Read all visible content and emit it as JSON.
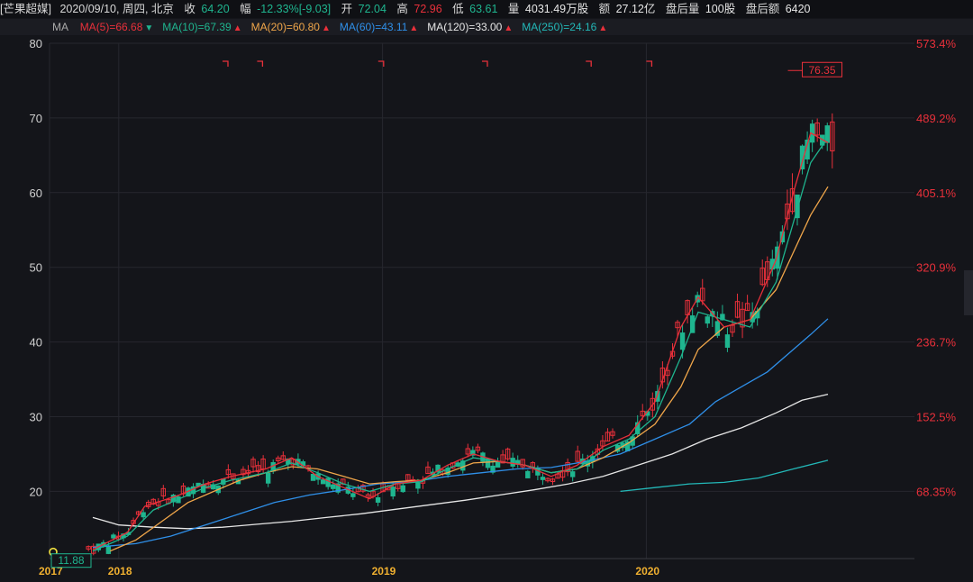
{
  "header": {
    "name": "[芒果超媒]",
    "date": "2020/09/10, 周四, 北京",
    "close_label": "收",
    "close_value": "64.20",
    "change_label": "幅",
    "change_value": "-12.33%",
    "change_abs": "[-9.03]",
    "open_label": "开",
    "open_value": "72.04",
    "high_label": "高",
    "high_value": "72.96",
    "low_label": "低",
    "low_value": "63.61",
    "volume_label": "量",
    "volume_value": "4031.49万股",
    "amount_label": "额",
    "amount_value": "27.12亿",
    "after_vol_label": "盘后量",
    "after_vol_value": "100股",
    "after_amt_label": "盘后额",
    "after_amt_value": "6420"
  },
  "ma_legend": {
    "title": "MA",
    "items": [
      {
        "text": "MA(5)=66.68",
        "color": "#e8303a",
        "arrow": "down"
      },
      {
        "text": "MA(10)=67.39",
        "color": "#1fb58f",
        "arrow": "up"
      },
      {
        "text": "MA(20)=60.80",
        "color": "#f0a64a",
        "arrow": "up"
      },
      {
        "text": "MA(60)=43.11",
        "color": "#2f8fe8",
        "arrow": "up"
      },
      {
        "text": "MA(120)=33.00",
        "color": "#e6e6e6",
        "arrow": "up"
      },
      {
        "text": "MA(250)=24.16",
        "color": "#23b8b8",
        "arrow": "up"
      }
    ]
  },
  "chart_data": {
    "type": "candlestick",
    "y_left_ticks": [
      "80",
      "70",
      "60",
      "50",
      "40",
      "30",
      "20"
    ],
    "y_right_ticks": [
      "573.4%",
      "489.2%",
      "405.1%",
      "320.9%",
      "236.7%",
      "152.5%",
      "68.35%"
    ],
    "x_ticks": [
      "2017",
      "2018",
      "2019",
      "2020"
    ],
    "ylim": [
      11,
      80
    ],
    "max_label": "76.35",
    "min_label": "11.88",
    "colors": {
      "up": "#e8303a",
      "down": "#1fb58f",
      "grid": "#26272e",
      "right_axis": "#e8303a"
    },
    "ma5_points": [
      [
        0.05,
        12.2
      ],
      [
        0.09,
        14.5
      ],
      [
        0.11,
        18
      ],
      [
        0.15,
        19.5
      ],
      [
        0.18,
        21
      ],
      [
        0.21,
        22
      ],
      [
        0.25,
        23
      ],
      [
        0.28,
        24.5
      ],
      [
        0.31,
        22
      ],
      [
        0.34,
        20.5
      ],
      [
        0.37,
        19
      ],
      [
        0.4,
        21
      ],
      [
        0.43,
        21.5
      ],
      [
        0.46,
        23.5
      ],
      [
        0.49,
        25
      ],
      [
        0.52,
        24
      ],
      [
        0.55,
        23.5
      ],
      [
        0.58,
        22
      ],
      [
        0.61,
        23.5
      ],
      [
        0.64,
        26
      ],
      [
        0.67,
        27.5
      ],
      [
        0.7,
        32
      ],
      [
        0.73,
        42
      ],
      [
        0.75,
        46
      ],
      [
        0.78,
        42
      ],
      [
        0.81,
        43
      ],
      [
        0.84,
        51
      ],
      [
        0.86,
        60
      ],
      [
        0.88,
        68
      ],
      [
        0.9,
        66.68
      ]
    ],
    "ma10_points": [
      [
        0.05,
        12.0
      ],
      [
        0.09,
        14
      ],
      [
        0.12,
        17.5
      ],
      [
        0.15,
        19
      ],
      [
        0.18,
        20.5
      ],
      [
        0.21,
        21.5
      ],
      [
        0.25,
        22.5
      ],
      [
        0.28,
        23.8
      ],
      [
        0.31,
        22.5
      ],
      [
        0.34,
        21
      ],
      [
        0.37,
        20
      ],
      [
        0.4,
        21
      ],
      [
        0.43,
        21.3
      ],
      [
        0.46,
        23
      ],
      [
        0.49,
        24.5
      ],
      [
        0.52,
        24
      ],
      [
        0.55,
        23.5
      ],
      [
        0.58,
        22.5
      ],
      [
        0.61,
        23
      ],
      [
        0.64,
        25.5
      ],
      [
        0.67,
        27
      ],
      [
        0.7,
        30
      ],
      [
        0.73,
        38
      ],
      [
        0.75,
        44
      ],
      [
        0.78,
        43
      ],
      [
        0.81,
        42
      ],
      [
        0.84,
        48
      ],
      [
        0.86,
        56
      ],
      [
        0.88,
        64
      ],
      [
        0.9,
        67.39
      ]
    ],
    "ma20_points": [
      [
        0.07,
        12
      ],
      [
        0.1,
        13.5
      ],
      [
        0.13,
        16
      ],
      [
        0.16,
        18.5
      ],
      [
        0.19,
        20
      ],
      [
        0.22,
        21.5
      ],
      [
        0.25,
        22.5
      ],
      [
        0.28,
        23.3
      ],
      [
        0.31,
        23
      ],
      [
        0.34,
        22
      ],
      [
        0.37,
        21
      ],
      [
        0.4,
        21.3
      ],
      [
        0.43,
        21.5
      ],
      [
        0.46,
        22.5
      ],
      [
        0.49,
        23.8
      ],
      [
        0.52,
        24
      ],
      [
        0.55,
        23.5
      ],
      [
        0.58,
        22.5
      ],
      [
        0.61,
        23
      ],
      [
        0.64,
        24.5
      ],
      [
        0.67,
        26.5
      ],
      [
        0.7,
        29
      ],
      [
        0.73,
        34
      ],
      [
        0.75,
        39
      ],
      [
        0.78,
        42
      ],
      [
        0.81,
        43
      ],
      [
        0.84,
        47
      ],
      [
        0.86,
        52
      ],
      [
        0.88,
        57
      ],
      [
        0.9,
        60.8
      ]
    ],
    "ma60_points": [
      [
        0.05,
        12.5
      ],
      [
        0.1,
        13
      ],
      [
        0.14,
        14
      ],
      [
        0.18,
        15.5
      ],
      [
        0.22,
        17
      ],
      [
        0.26,
        18.5
      ],
      [
        0.3,
        19.5
      ],
      [
        0.34,
        20.2
      ],
      [
        0.38,
        21
      ],
      [
        0.42,
        21.3
      ],
      [
        0.46,
        22
      ],
      [
        0.5,
        22.5
      ],
      [
        0.54,
        23
      ],
      [
        0.58,
        23.2
      ],
      [
        0.62,
        24
      ],
      [
        0.66,
        25
      ],
      [
        0.7,
        27
      ],
      [
        0.74,
        29
      ],
      [
        0.77,
        32
      ],
      [
        0.8,
        34
      ],
      [
        0.83,
        36
      ],
      [
        0.86,
        39
      ],
      [
        0.88,
        41
      ],
      [
        0.9,
        43.11
      ]
    ],
    "ma120_points": [
      [
        0.05,
        16.5
      ],
      [
        0.08,
        15.5
      ],
      [
        0.12,
        15.2
      ],
      [
        0.16,
        15
      ],
      [
        0.2,
        15.2
      ],
      [
        0.24,
        15.6
      ],
      [
        0.28,
        16
      ],
      [
        0.32,
        16.5
      ],
      [
        0.36,
        17
      ],
      [
        0.4,
        17.6
      ],
      [
        0.44,
        18.2
      ],
      [
        0.48,
        18.8
      ],
      [
        0.52,
        19.5
      ],
      [
        0.56,
        20.2
      ],
      [
        0.6,
        21
      ],
      [
        0.64,
        22
      ],
      [
        0.68,
        23.5
      ],
      [
        0.72,
        25
      ],
      [
        0.76,
        27
      ],
      [
        0.8,
        28.5
      ],
      [
        0.84,
        30.5
      ],
      [
        0.87,
        32.2
      ],
      [
        0.9,
        33
      ]
    ],
    "ma250_points": [
      [
        0.66,
        20.0
      ],
      [
        0.7,
        20.5
      ],
      [
        0.74,
        21
      ],
      [
        0.78,
        21.2
      ],
      [
        0.82,
        21.8
      ],
      [
        0.86,
        23
      ],
      [
        0.9,
        24.16
      ]
    ]
  }
}
